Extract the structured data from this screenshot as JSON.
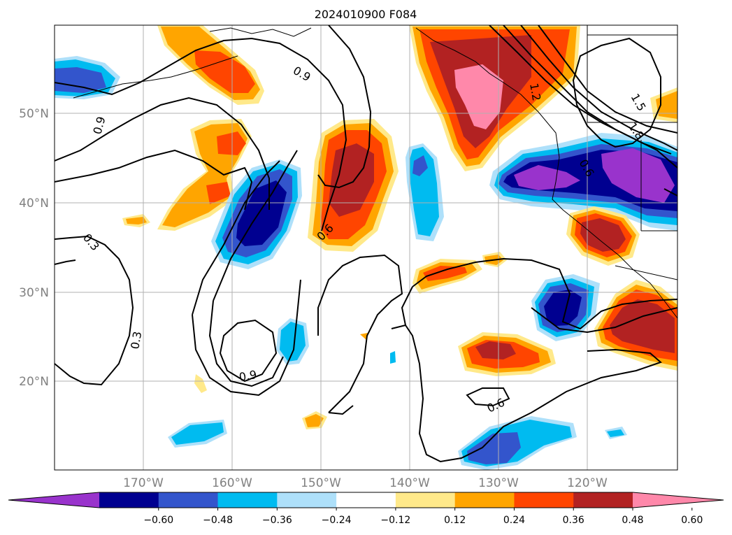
{
  "title": "2024010900 F084",
  "lat_labels": [
    "50°N",
    "40°N",
    "30°N",
    "20°N"
  ],
  "lon_labels": [
    "170°W",
    "160°W",
    "150°W",
    "140°W",
    "130°W",
    "120°W"
  ],
  "colorbar": {
    "ticks": [
      "−0.60",
      "−0.48",
      "−0.36",
      "−0.24",
      "−0.12",
      "0.12",
      "0.24",
      "0.36",
      "0.48",
      "0.60"
    ],
    "colors": [
      "#9933cc",
      "#000090",
      "#3355cc",
      "#00bbf0",
      "#aee0fa",
      "#ffffff",
      "#ffe98a",
      "#ffa500",
      "#ff4500",
      "#b22222",
      "#ff88aa"
    ]
  },
  "contour_labels": [
    "0.9",
    "0.9",
    "0.3",
    "0.3",
    "0.6",
    "0.9",
    "0.6",
    "1.2",
    "1.5",
    "1.8",
    "0.6"
  ],
  "colors": {
    "purple": "#9933cc",
    "navy": "#000090",
    "blue": "#3355cc",
    "sky": "#00bbf0",
    "lightblue": "#aee0fa",
    "yellow": "#ffe98a",
    "orange": "#ffa500",
    "redorange": "#ff4500",
    "firebrick": "#b22222",
    "pink": "#ff88aa"
  }
}
